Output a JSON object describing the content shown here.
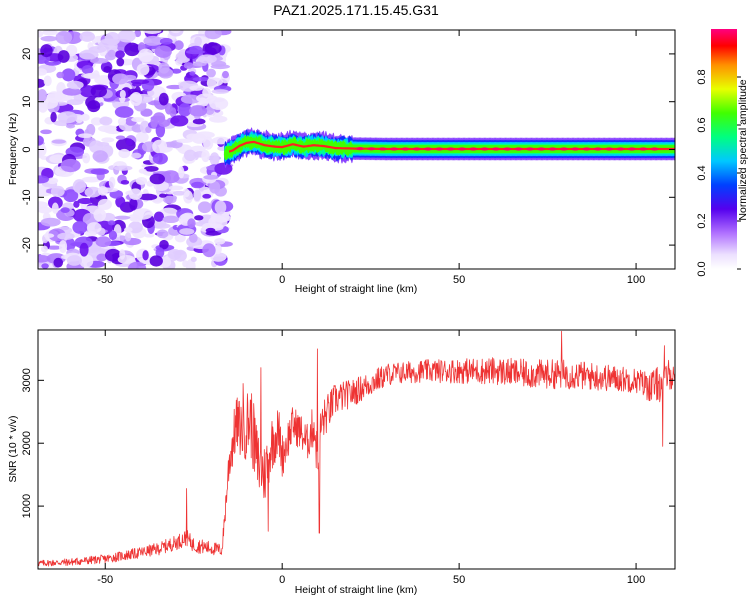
{
  "title": "PAZ1.2025.171.15.45.G31",
  "colors": {
    "snr_line": "#ee3333",
    "frame": "#000000"
  },
  "chart_data": [
    {
      "type": "heatmap",
      "xlabel": "Height of straight line (km)",
      "ylabel": "Frequency (Hz)",
      "xlim": [
        -69,
        111
      ],
      "ylim": [
        -25,
        25
      ],
      "xticks": [
        -50,
        0,
        50,
        100
      ],
      "yticks": [
        -20,
        -10,
        0,
        10,
        20
      ],
      "noise_region_x": [
        -69,
        -17
      ],
      "signal_track": [
        {
          "x": -16,
          "y": -0.7
        },
        {
          "x": -14,
          "y": -0.2
        },
        {
          "x": -12,
          "y": 0.8
        },
        {
          "x": -10,
          "y": 1.4
        },
        {
          "x": -8,
          "y": 1.6
        },
        {
          "x": -5,
          "y": 0.9
        },
        {
          "x": -2,
          "y": 0.6
        },
        {
          "x": 0,
          "y": 0.5
        },
        {
          "x": 3,
          "y": 1.1
        },
        {
          "x": 6,
          "y": 0.6
        },
        {
          "x": 9,
          "y": 0.9
        },
        {
          "x": 12,
          "y": 0.7
        },
        {
          "x": 15,
          "y": 0.3
        },
        {
          "x": 20,
          "y": 0.2
        },
        {
          "x": 30,
          "y": 0.1
        },
        {
          "x": 60,
          "y": 0.1
        },
        {
          "x": 100,
          "y": 0.1
        },
        {
          "x": 106,
          "y": 0.1
        },
        {
          "x": 111,
          "y": 0.1
        }
      ],
      "colorbar": {
        "label": "Normalized spectral amplitude",
        "ticks": [
          0.0,
          0.2,
          0.4,
          0.6,
          0.8
        ],
        "tick_labels": [
          "0.0",
          "0.2",
          "0.4",
          "0.6",
          "0.8"
        ],
        "range": [
          0,
          1
        ]
      }
    },
    {
      "type": "line",
      "xlabel": "Height of straight line (km)",
      "ylabel": "SNR (10 * v/v)",
      "xlim": [
        -69,
        111
      ],
      "ylim": [
        0,
        3800
      ],
      "xticks": [
        -50,
        0,
        50,
        100
      ],
      "yticks": [
        1000,
        2000,
        3000
      ],
      "series": [
        {
          "color": "#ee3333",
          "x": [
            -69,
            -60,
            -50,
            -40,
            -35,
            -30,
            -27,
            -25,
            -20,
            -17,
            -15,
            -13,
            -11,
            -9,
            -7,
            -5,
            -3,
            -1,
            0,
            3,
            5,
            7,
            9,
            10,
            11,
            13,
            15,
            20,
            25,
            30,
            40,
            50,
            60,
            70,
            80,
            90,
            100,
            104,
            107,
            109,
            111
          ],
          "y": [
            90,
            110,
            160,
            260,
            320,
            420,
            500,
            380,
            330,
            300,
            1700,
            2300,
            2200,
            2400,
            1700,
            1500,
            2000,
            2200,
            1800,
            2300,
            2200,
            2000,
            2300,
            1700,
            2300,
            2500,
            2700,
            2800,
            2950,
            3100,
            3150,
            3150,
            3150,
            3100,
            3100,
            3050,
            3000,
            2900,
            2950,
            3100,
            3050
          ],
          "amp": [
            50,
            60,
            70,
            90,
            100,
            120,
            130,
            120,
            110,
            100,
            350,
            450,
            500,
            600,
            550,
            500,
            450,
            400,
            350,
            300,
            300,
            300,
            350,
            400,
            350,
            300,
            260,
            220,
            200,
            180,
            180,
            200,
            220,
            230,
            240,
            220,
            200,
            250,
            300,
            250,
            200
          ],
          "spikes": [
            {
              "x": -27,
              "y": 1280
            },
            {
              "x": -11,
              "y": 2950
            },
            {
              "x": -6,
              "y": 3200
            },
            {
              "x": 10,
              "y": 3500
            },
            {
              "x": 10.5,
              "y": 570
            },
            {
              "x": -4,
              "y": 600
            },
            {
              "x": 79,
              "y": 3780
            },
            {
              "x": 107.5,
              "y": 1950
            },
            {
              "x": 108,
              "y": 3550
            }
          ]
        }
      ]
    }
  ]
}
